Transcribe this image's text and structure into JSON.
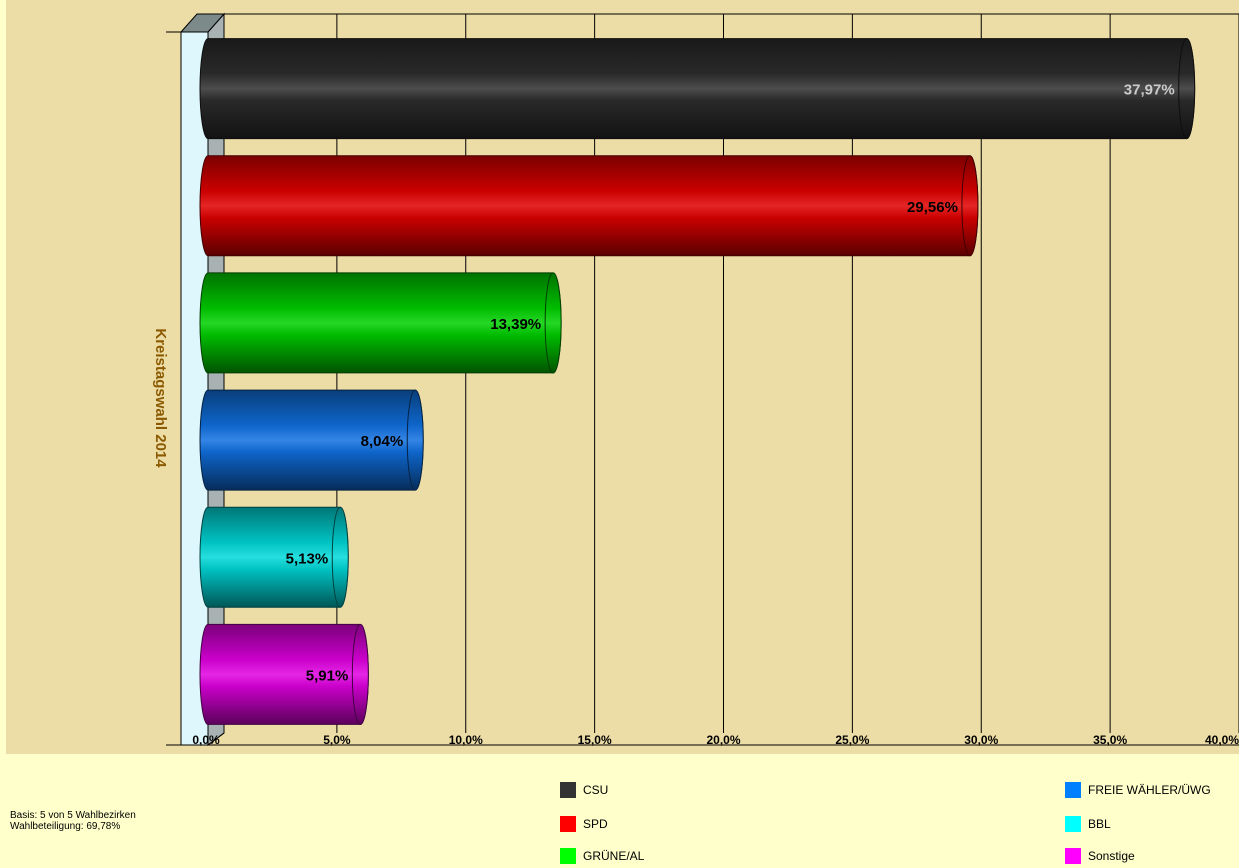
{
  "chart_data": {
    "type": "bar",
    "orientation": "horizontal",
    "style": "3d-cylinder",
    "ylabel": "Kreistagswahl 2014",
    "xlim": [
      0,
      40
    ],
    "xticks": [
      "0,0%",
      "5,0%",
      "10,0%",
      "15,0%",
      "20,0%",
      "25,0%",
      "30,0%",
      "35,0%",
      "40,0%"
    ],
    "grid": true,
    "legend_position": "bottom",
    "bars": [
      {
        "party": "CSU",
        "value": 37.97,
        "label": "37,97%",
        "color": "#2E2E2E",
        "label_color": "#CCCCCC"
      },
      {
        "party": "SPD",
        "value": 29.56,
        "label": "29,56%",
        "color": "#E00000",
        "label_color": "#000000"
      },
      {
        "party": "GRÜNE/AL",
        "value": 13.39,
        "label": "13,39%",
        "color": "#00D000",
        "label_color": "#000000"
      },
      {
        "party": "FREIE WÄHLER/ÜWG",
        "value": 8.04,
        "label": "8,04%",
        "color": "#1070E0",
        "label_color": "#000000"
      },
      {
        "party": "BBL",
        "value": 5.13,
        "label": "5,13%",
        "color": "#00D8D8",
        "label_color": "#000000"
      },
      {
        "party": "Sonstige",
        "value": 5.91,
        "label": "5,91%",
        "color": "#E000E0",
        "label_color": "#000000"
      }
    ]
  },
  "legend": [
    {
      "label": "CSU",
      "color": "#333333"
    },
    {
      "label": "SPD",
      "color": "#FF0000"
    },
    {
      "label": "GRÜNE/AL",
      "color": "#00FF00"
    },
    {
      "label": "FREIE WÄHLER/ÜWG",
      "color": "#0080FF"
    },
    {
      "label": "BBL",
      "color": "#00FFFF"
    },
    {
      "label": "Sonstige",
      "color": "#FF00FF"
    }
  ],
  "footer": {
    "basis": "Basis: 5 von 5 Wahlbezirken",
    "turnout": "Wahlbeteiligung: 69,78%"
  }
}
